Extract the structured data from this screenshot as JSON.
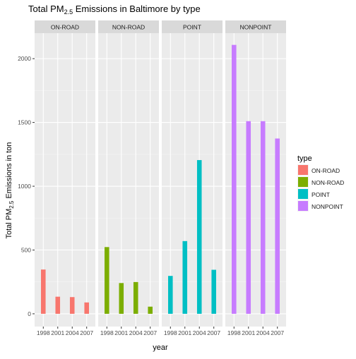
{
  "chart_data": {
    "type": "bar",
    "title": {
      "prefix": "Total PM",
      "sub": "2.5",
      "suffix": " Emissions in Baltimore by type"
    },
    "xlabel": "year",
    "ylabel": {
      "prefix": "Total PM",
      "sub": "2.5",
      "suffix": " Emissions in ton"
    },
    "categories": [
      "1998",
      "2001",
      "2004",
      "2007"
    ],
    "ylim": [
      -100,
      2200
    ],
    "yticks": [
      0,
      500,
      1000,
      1500,
      2000
    ],
    "grid": true,
    "legend": {
      "title": "type",
      "placement": "right"
    },
    "series": [
      {
        "name": "ON-ROAD",
        "color": "#F8766D",
        "values": [
          347,
          134,
          131,
          89
        ]
      },
      {
        "name": "NON-ROAD",
        "color": "#7CAE00",
        "values": [
          523,
          241,
          249,
          56
        ]
      },
      {
        "name": "POINT",
        "color": "#00BFC4",
        "values": [
          297,
          570,
          1205,
          345
        ]
      },
      {
        "name": "NONPOINT",
        "color": "#C77CFF",
        "values": [
          2108,
          1510,
          1510,
          1374
        ]
      }
    ]
  }
}
